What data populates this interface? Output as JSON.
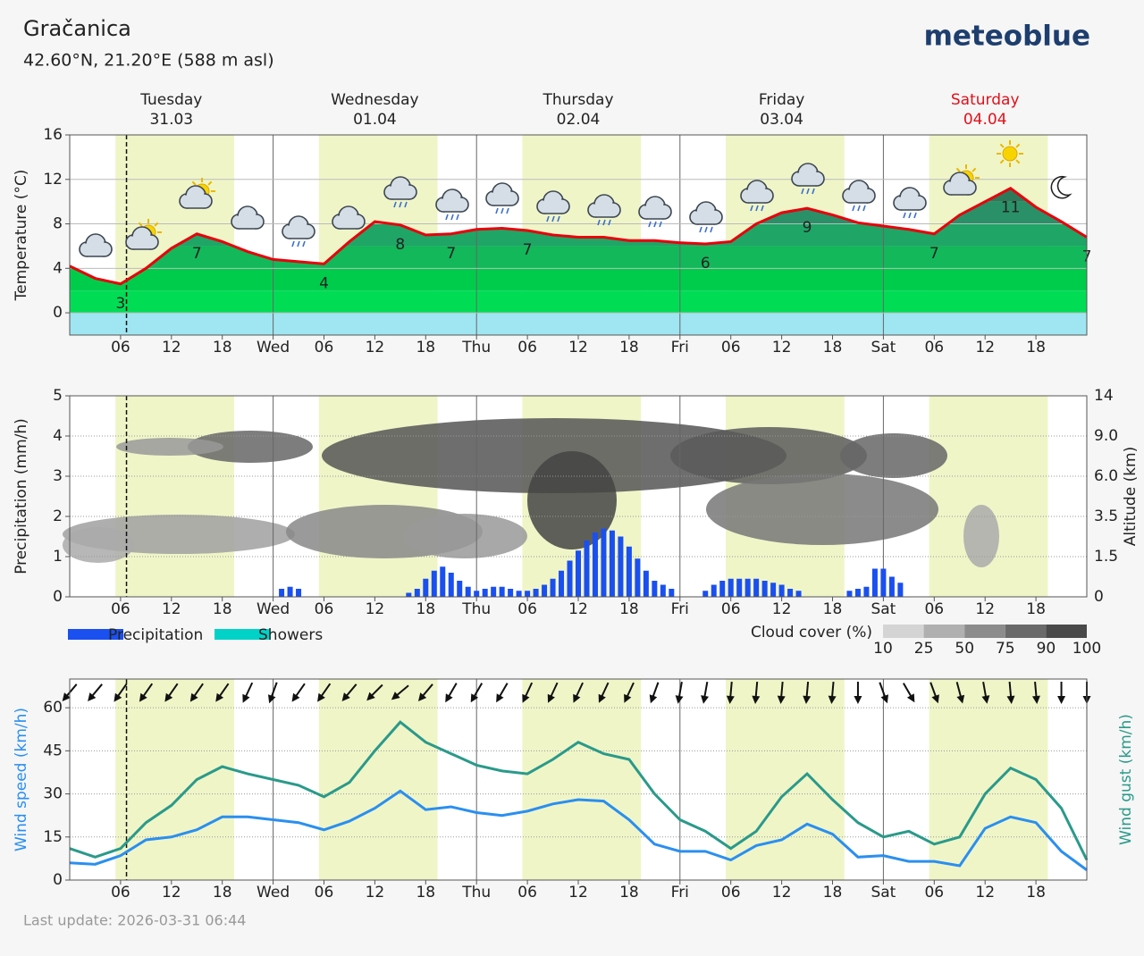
{
  "header": {
    "title": "Gračanica",
    "subtitle": "42.60°N, 21.20°E (588 m asl)",
    "brand": "meteoblue"
  },
  "days": [
    {
      "name": "Tuesday",
      "date": "31.03",
      "color": "#222222"
    },
    {
      "name": "Wednesday",
      "date": "01.04",
      "color": "#222222"
    },
    {
      "name": "Thursday",
      "date": "02.04",
      "color": "#222222"
    },
    {
      "name": "Friday",
      "date": "03.04",
      "color": "#222222"
    },
    {
      "name": "Saturday",
      "date": "04.04",
      "color": "#e0101a"
    }
  ],
  "chart_data": [
    {
      "type": "area",
      "y_label": "Temperature (°C)",
      "color": "#e8000b",
      "area_colors": [
        "#00dd55",
        "#00cc4c",
        "#12b85a",
        "#1fa566",
        "#2a9068",
        "#2d7a5a"
      ],
      "xlim": [
        0,
        120
      ],
      "ylim": [
        -2,
        16
      ],
      "yticks": [
        0,
        4,
        8,
        12,
        16
      ],
      "grid": true,
      "xticks": [
        {
          "value": 6,
          "label": "06"
        },
        {
          "value": 12,
          "label": "12"
        },
        {
          "value": 18,
          "label": "18"
        },
        {
          "value": 24,
          "label": "Wed"
        },
        {
          "value": 30,
          "label": "06"
        },
        {
          "value": 36,
          "label": "12"
        },
        {
          "value": 42,
          "label": "18"
        },
        {
          "value": 48,
          "label": "Thu"
        },
        {
          "value": 54,
          "label": "06"
        },
        {
          "value": 60,
          "label": "12"
        },
        {
          "value": 66,
          "label": "18"
        },
        {
          "value": 72,
          "label": "Fri"
        },
        {
          "value": 78,
          "label": "06"
        },
        {
          "value": 84,
          "label": "12"
        },
        {
          "value": 90,
          "label": "18"
        },
        {
          "value": 96,
          "label": "Sat"
        },
        {
          "value": 102,
          "label": "06"
        },
        {
          "value": 108,
          "label": "12"
        },
        {
          "value": 114,
          "label": "18"
        }
      ],
      "x": [
        0,
        3,
        6,
        9,
        12,
        15,
        18,
        21,
        24,
        27,
        30,
        33,
        36,
        39,
        42,
        45,
        48,
        51,
        54,
        57,
        60,
        63,
        66,
        69,
        72,
        75,
        78,
        81,
        84,
        87,
        90,
        93,
        96,
        99,
        102,
        105,
        108,
        111,
        114,
        117,
        120
      ],
      "values": [
        4.2,
        3.1,
        2.6,
        4.0,
        5.8,
        7.1,
        6.4,
        5.5,
        4.8,
        4.6,
        4.4,
        6.4,
        8.2,
        7.9,
        7.0,
        7.1,
        7.5,
        7.6,
        7.4,
        7.0,
        6.8,
        6.8,
        6.5,
        6.5,
        6.3,
        6.2,
        6.4,
        8.0,
        9.0,
        9.4,
        8.8,
        8.1,
        7.8,
        7.5,
        7.1,
        8.8,
        10.0,
        11.2,
        9.5,
        8.2,
        6.8
      ],
      "value_labels": [
        null,
        null,
        "3",
        null,
        null,
        "7",
        null,
        null,
        null,
        null,
        "4",
        null,
        null,
        "8",
        null,
        "7",
        null,
        null,
        "7",
        null,
        null,
        null,
        null,
        null,
        null,
        "6",
        null,
        null,
        null,
        "9",
        null,
        null,
        null,
        null,
        "7",
        null,
        null,
        "11",
        null,
        null,
        "7"
      ]
    },
    {
      "type": "bar",
      "y_label": "Precipitation (mm/h)",
      "y2_label": "Altitude (km)",
      "xlim": [
        0,
        120
      ],
      "ylim": [
        0,
        5
      ],
      "yticks": [
        0,
        1,
        2,
        3,
        4,
        5
      ],
      "grid": true,
      "y2ticks": [
        0,
        1.5,
        3.5,
        {
          "value": 6,
          "label": "6.0"
        },
        {
          "value": 9,
          "label": "9.0"
        },
        14
      ],
      "xticks": [
        {
          "value": 6,
          "label": "06"
        },
        {
          "value": 12,
          "label": "12"
        },
        {
          "value": 18,
          "label": "18"
        },
        {
          "value": 24,
          "label": "Wed"
        },
        {
          "value": 30,
          "label": "06"
        },
        {
          "value": 36,
          "label": "12"
        },
        {
          "value": 42,
          "label": "18"
        },
        {
          "value": 48,
          "label": "Thu"
        },
        {
          "value": 54,
          "label": "06"
        },
        {
          "value": 60,
          "label": "12"
        },
        {
          "value": 66,
          "label": "18"
        },
        {
          "value": 72,
          "label": "Fri"
        },
        {
          "value": 78,
          "label": "06"
        },
        {
          "value": 84,
          "label": "12"
        },
        {
          "value": 90,
          "label": "18"
        },
        {
          "value": 96,
          "label": "Sat"
        },
        {
          "value": 102,
          "label": "06"
        },
        {
          "value": 108,
          "label": "12"
        },
        {
          "value": 114,
          "label": "18"
        }
      ],
      "series": [
        {
          "name": "Precipitation",
          "color": "#1a4ff0",
          "x": [
            25,
            26,
            27,
            40,
            41,
            42,
            43,
            44,
            45,
            46,
            47,
            48,
            49,
            50,
            51,
            52,
            53,
            54,
            55,
            56,
            57,
            58,
            59,
            60,
            61,
            62,
            63,
            64,
            65,
            66,
            67,
            68,
            69,
            70,
            71,
            75,
            76,
            77,
            78,
            79,
            80,
            81,
            82,
            83,
            84,
            85,
            86,
            92,
            93,
            94,
            95,
            96,
            97,
            98
          ],
          "values": [
            0.2,
            0.25,
            0.2,
            0.1,
            0.2,
            0.45,
            0.65,
            0.75,
            0.6,
            0.4,
            0.25,
            0.15,
            0.2,
            0.25,
            0.25,
            0.2,
            0.15,
            0.15,
            0.2,
            0.3,
            0.45,
            0.65,
            0.9,
            1.15,
            1.4,
            1.6,
            1.7,
            1.65,
            1.5,
            1.25,
            0.95,
            0.65,
            0.4,
            0.3,
            0.2,
            0.15,
            0.3,
            0.4,
            0.45,
            0.45,
            0.45,
            0.45,
            0.4,
            0.35,
            0.3,
            0.2,
            0.15,
            0.15,
            0.2,
            0.25,
            0.7,
            0.7,
            0.5,
            0.35
          ]
        },
        {
          "name": "Showers",
          "color": "#00d2c8",
          "x": [],
          "values": []
        }
      ],
      "cloud_cover_legend": {
        "title": "Cloud cover (%)",
        "ticks": [
          10,
          25,
          50,
          75,
          90,
          100
        ],
        "colors": [
          "#d4d4d4",
          "#b0b0b0",
          "#8c8c8c",
          "#6a6a6a",
          "#4a4a4a"
        ]
      }
    },
    {
      "type": "line",
      "xlim": [
        0,
        120
      ],
      "ylim": [
        0,
        70
      ],
      "yticks": [
        0,
        15,
        30,
        45,
        60
      ],
      "y2lim": [
        0,
        70
      ],
      "grid": true,
      "xticks": [
        {
          "value": 6,
          "label": "06"
        },
        {
          "value": 12,
          "label": "12"
        },
        {
          "value": 18,
          "label": "18"
        },
        {
          "value": 24,
          "label": "Wed"
        },
        {
          "value": 30,
          "label": "06"
        },
        {
          "value": 36,
          "label": "12"
        },
        {
          "value": 42,
          "label": "18"
        },
        {
          "value": 48,
          "label": "Thu"
        },
        {
          "value": 54,
          "label": "06"
        },
        {
          "value": 60,
          "label": "12"
        },
        {
          "value": 66,
          "label": "18"
        },
        {
          "value": 72,
          "label": "Fri"
        },
        {
          "value": 78,
          "label": "06"
        },
        {
          "value": 84,
          "label": "12"
        },
        {
          "value": 90,
          "label": "18"
        },
        {
          "value": 96,
          "label": "Sat"
        },
        {
          "value": 102,
          "label": "06"
        },
        {
          "value": 108,
          "label": "12"
        },
        {
          "value": 114,
          "label": "18"
        }
      ],
      "x": [
        0,
        3,
        6,
        9,
        12,
        15,
        18,
        21,
        24,
        27,
        30,
        33,
        36,
        39,
        42,
        45,
        48,
        51,
        54,
        57,
        60,
        63,
        66,
        69,
        72,
        75,
        78,
        81,
        84,
        87,
        90,
        93,
        96,
        99,
        102,
        105,
        108,
        111,
        114,
        117,
        120
      ],
      "series": [
        {
          "label": "Wind speed (km/h)",
          "color": "#2a8ff0",
          "values": [
            6,
            5.5,
            8.5,
            14,
            15,
            17.5,
            22,
            22,
            21,
            20,
            17.5,
            20.5,
            25,
            31,
            24.5,
            25.5,
            23.5,
            22.5,
            24,
            26.5,
            28,
            27.5,
            21,
            12.5,
            10,
            10,
            7,
            12,
            14,
            19.5,
            16,
            8,
            8.5,
            6.5,
            6.5,
            5,
            18,
            22,
            20,
            10,
            3.5
          ]
        },
        {
          "label": "Wind gust (km/h)",
          "color": "#2a9a8a",
          "axis": "y2",
          "values": [
            11,
            8,
            11,
            20,
            26,
            35,
            39.5,
            37,
            35,
            33,
            29,
            34,
            45,
            55,
            48,
            44,
            40,
            38,
            37,
            42,
            48,
            44,
            42,
            30,
            21,
            17,
            11,
            17,
            29,
            37,
            28,
            20,
            15,
            17,
            12.5,
            15,
            30,
            39,
            35,
            25,
            7
          ]
        }
      ],
      "wind_direction": [
        40,
        40,
        35,
        35,
        35,
        35,
        35,
        25,
        20,
        35,
        35,
        40,
        45,
        50,
        40,
        30,
        30,
        30,
        25,
        25,
        25,
        25,
        25,
        20,
        10,
        10,
        5,
        5,
        5,
        5,
        5,
        0,
        340,
        330,
        340,
        345,
        350,
        355,
        355,
        0,
        0
      ]
    }
  ],
  "footer": "Last update: 2026-03-31 06:44"
}
